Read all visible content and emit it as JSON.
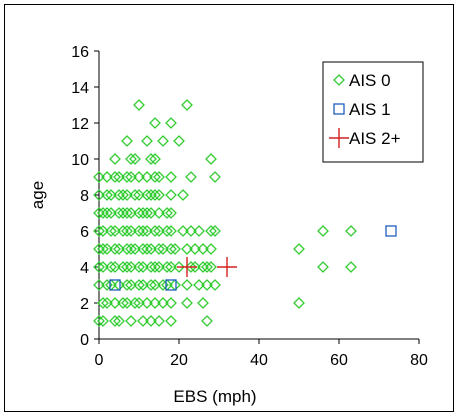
{
  "chart_data": {
    "type": "scatter",
    "title": "",
    "xlabel": "EBS (mph)",
    "ylabel": "age",
    "xlim": [
      0,
      80
    ],
    "ylim": [
      0,
      16
    ],
    "xticks": [
      0,
      20,
      40,
      60,
      80
    ],
    "yticks": [
      0,
      2,
      4,
      6,
      8,
      10,
      12,
      14,
      16
    ],
    "grid": false,
    "legend_position": "top-right",
    "series": [
      {
        "name": "AIS 0",
        "marker": "diamond",
        "color": "#33cc33",
        "points": [
          [
            0,
            1
          ],
          [
            1,
            1
          ],
          [
            4,
            1
          ],
          [
            5,
            1
          ],
          [
            8,
            1
          ],
          [
            11,
            1
          ],
          [
            13,
            1
          ],
          [
            15,
            1
          ],
          [
            18,
            1
          ],
          [
            27,
            1
          ],
          [
            1,
            2
          ],
          [
            2,
            2
          ],
          [
            4,
            2
          ],
          [
            6,
            2
          ],
          [
            7,
            2
          ],
          [
            9,
            2
          ],
          [
            10,
            2
          ],
          [
            12,
            2
          ],
          [
            14,
            2
          ],
          [
            16,
            2
          ],
          [
            18,
            2
          ],
          [
            22,
            2
          ],
          [
            26,
            2
          ],
          [
            50,
            2
          ],
          [
            0,
            3
          ],
          [
            2,
            3
          ],
          [
            3,
            3
          ],
          [
            5,
            3
          ],
          [
            7,
            3
          ],
          [
            8,
            3
          ],
          [
            10,
            3
          ],
          [
            11,
            3
          ],
          [
            13,
            3
          ],
          [
            14,
            3
          ],
          [
            16,
            3
          ],
          [
            17,
            3
          ],
          [
            19,
            3
          ],
          [
            22,
            3
          ],
          [
            25,
            3
          ],
          [
            27,
            3
          ],
          [
            29,
            3
          ],
          [
            0,
            4
          ],
          [
            1,
            4
          ],
          [
            3,
            4
          ],
          [
            4,
            4
          ],
          [
            6,
            4
          ],
          [
            7,
            4
          ],
          [
            8,
            4
          ],
          [
            10,
            4
          ],
          [
            11,
            4
          ],
          [
            13,
            4
          ],
          [
            14,
            4
          ],
          [
            15,
            4
          ],
          [
            17,
            4
          ],
          [
            18,
            4
          ],
          [
            20,
            4
          ],
          [
            23,
            4
          ],
          [
            24,
            4
          ],
          [
            26,
            4
          ],
          [
            27,
            4
          ],
          [
            28,
            4
          ],
          [
            56,
            4
          ],
          [
            63,
            4
          ],
          [
            0,
            5
          ],
          [
            1,
            5
          ],
          [
            2,
            5
          ],
          [
            4,
            5
          ],
          [
            5,
            5
          ],
          [
            7,
            5
          ],
          [
            8,
            5
          ],
          [
            9,
            5
          ],
          [
            11,
            5
          ],
          [
            12,
            5
          ],
          [
            13,
            5
          ],
          [
            15,
            5
          ],
          [
            16,
            5
          ],
          [
            18,
            5
          ],
          [
            19,
            5
          ],
          [
            22,
            5
          ],
          [
            24,
            5
          ],
          [
            26,
            5
          ],
          [
            28,
            5
          ],
          [
            50,
            5
          ],
          [
            0,
            6
          ],
          [
            1,
            6
          ],
          [
            3,
            6
          ],
          [
            4,
            6
          ],
          [
            6,
            6
          ],
          [
            7,
            6
          ],
          [
            8,
            6
          ],
          [
            10,
            6
          ],
          [
            11,
            6
          ],
          [
            12,
            6
          ],
          [
            14,
            6
          ],
          [
            15,
            6
          ],
          [
            17,
            6
          ],
          [
            18,
            6
          ],
          [
            21,
            6
          ],
          [
            23,
            6
          ],
          [
            25,
            6
          ],
          [
            28,
            6
          ],
          [
            29,
            6
          ],
          [
            56,
            6
          ],
          [
            63,
            6
          ],
          [
            0,
            7
          ],
          [
            1,
            7
          ],
          [
            2,
            7
          ],
          [
            3,
            7
          ],
          [
            5,
            7
          ],
          [
            6,
            7
          ],
          [
            7,
            7
          ],
          [
            8,
            7
          ],
          [
            10,
            7
          ],
          [
            11,
            7
          ],
          [
            12,
            7
          ],
          [
            13,
            7
          ],
          [
            15,
            7
          ],
          [
            17,
            7
          ],
          [
            18,
            7
          ],
          [
            0,
            8
          ],
          [
            2,
            8
          ],
          [
            3,
            8
          ],
          [
            5,
            8
          ],
          [
            6,
            8
          ],
          [
            7,
            8
          ],
          [
            9,
            8
          ],
          [
            10,
            8
          ],
          [
            12,
            8
          ],
          [
            13,
            8
          ],
          [
            14,
            8
          ],
          [
            15,
            8
          ],
          [
            18,
            8
          ],
          [
            21,
            8
          ],
          [
            0,
            9
          ],
          [
            2,
            9
          ],
          [
            4,
            9
          ],
          [
            5,
            9
          ],
          [
            7,
            9
          ],
          [
            8,
            9
          ],
          [
            10,
            9
          ],
          [
            12,
            9
          ],
          [
            14,
            9
          ],
          [
            15,
            9
          ],
          [
            18,
            9
          ],
          [
            23,
            9
          ],
          [
            29,
            9
          ],
          [
            4,
            10
          ],
          [
            8,
            10
          ],
          [
            9,
            10
          ],
          [
            13,
            10
          ],
          [
            14,
            10
          ],
          [
            28,
            10
          ],
          [
            7,
            11
          ],
          [
            12,
            11
          ],
          [
            16,
            11
          ],
          [
            20,
            11
          ],
          [
            14,
            12
          ],
          [
            18,
            12
          ],
          [
            10,
            13
          ],
          [
            22,
            13
          ]
        ]
      },
      {
        "name": "AIS 1",
        "marker": "square",
        "color": "#1f5fbf",
        "points": [
          [
            4,
            3
          ],
          [
            18,
            3
          ],
          [
            73,
            6
          ]
        ]
      },
      {
        "name": "AIS 2+",
        "marker": "plus",
        "color": "#d42020",
        "points": [
          [
            22,
            4
          ],
          [
            32,
            4
          ]
        ]
      }
    ]
  }
}
